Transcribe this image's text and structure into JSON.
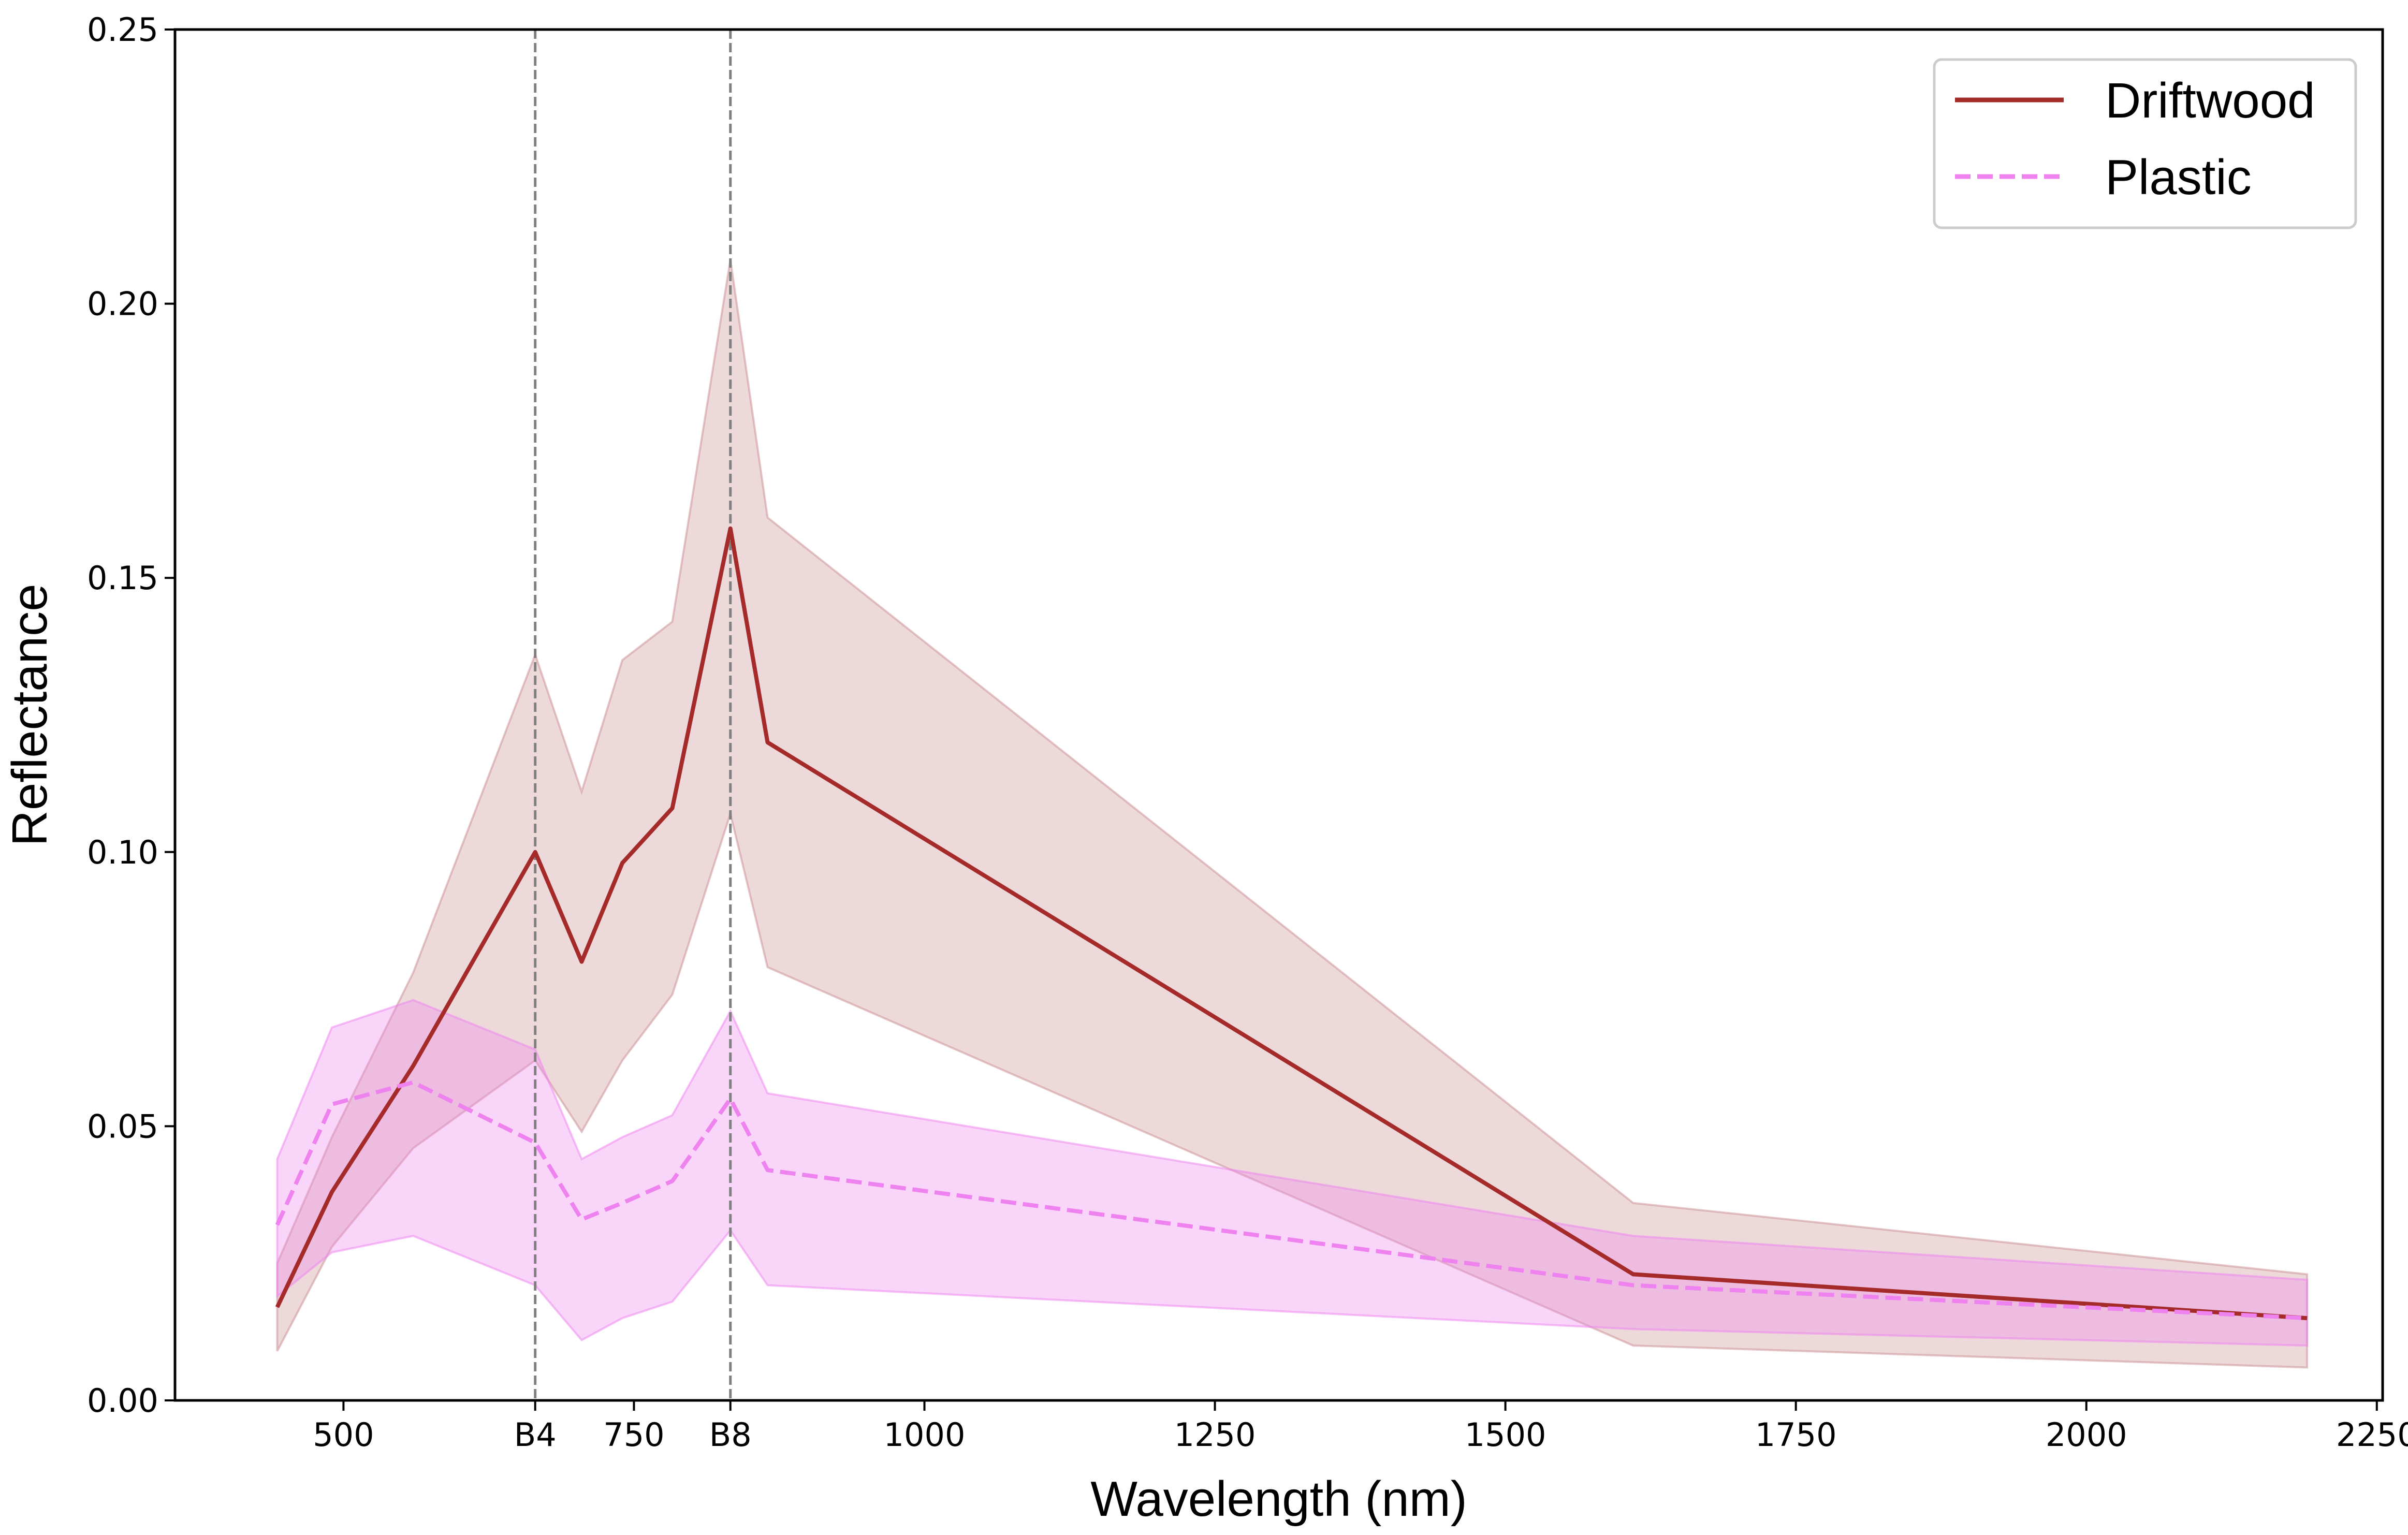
{
  "chart_data": {
    "type": "line",
    "xlabel": "Wavelength (nm)",
    "ylabel": "Reflectance",
    "xlim": [
      355,
      2255
    ],
    "ylim": [
      0.0,
      0.25
    ],
    "xticks": [
      {
        "value": 500,
        "label": "500"
      },
      {
        "value": 665,
        "label": "B4"
      },
      {
        "value": 750,
        "label": "750"
      },
      {
        "value": 833,
        "label": "B8"
      },
      {
        "value": 1000,
        "label": "1000"
      },
      {
        "value": 1250,
        "label": "1250"
      },
      {
        "value": 1500,
        "label": "1500"
      },
      {
        "value": 1750,
        "label": "1750"
      },
      {
        "value": 2000,
        "label": "2000"
      },
      {
        "value": 2250,
        "label": "2250"
      }
    ],
    "yticks": [
      {
        "value": 0.0,
        "label": "0.00"
      },
      {
        "value": 0.05,
        "label": "0.05"
      },
      {
        "value": 0.1,
        "label": "0.10"
      },
      {
        "value": 0.15,
        "label": "0.15"
      },
      {
        "value": 0.2,
        "label": "0.20"
      },
      {
        "value": 0.25,
        "label": "0.25"
      }
    ],
    "vlines": [
      665,
      833
    ],
    "x": [
      443,
      490,
      560,
      665,
      705,
      740,
      783,
      833,
      865,
      1610,
      2190
    ],
    "series": [
      {
        "name": "Driftwood",
        "color": "#a52a2a",
        "linestyle": "solid",
        "band_color": "#c98b8f",
        "values": [
          0.017,
          0.038,
          0.061,
          0.1,
          0.08,
          0.098,
          0.108,
          0.159,
          0.12,
          0.023,
          0.015
        ],
        "lower": [
          0.009,
          0.028,
          0.046,
          0.062,
          0.049,
          0.062,
          0.074,
          0.107,
          0.079,
          0.01,
          0.006
        ],
        "upper": [
          0.025,
          0.048,
          0.078,
          0.136,
          0.111,
          0.135,
          0.142,
          0.208,
          0.161,
          0.036,
          0.023
        ]
      },
      {
        "name": "Plastic",
        "color": "#ee82ee",
        "linestyle": "dashed",
        "band_color": "#ee82ee",
        "values": [
          0.032,
          0.054,
          0.058,
          0.047,
          0.033,
          0.036,
          0.04,
          0.055,
          0.042,
          0.021,
          0.015
        ],
        "lower": [
          0.019,
          0.027,
          0.03,
          0.021,
          0.011,
          0.015,
          0.018,
          0.031,
          0.021,
          0.013,
          0.01
        ],
        "upper": [
          0.044,
          0.068,
          0.073,
          0.064,
          0.044,
          0.048,
          0.052,
          0.071,
          0.056,
          0.03,
          0.022
        ]
      }
    ],
    "legend": {
      "position": "upper right",
      "entries": [
        "Driftwood",
        "Plastic"
      ]
    },
    "grid": false
  }
}
